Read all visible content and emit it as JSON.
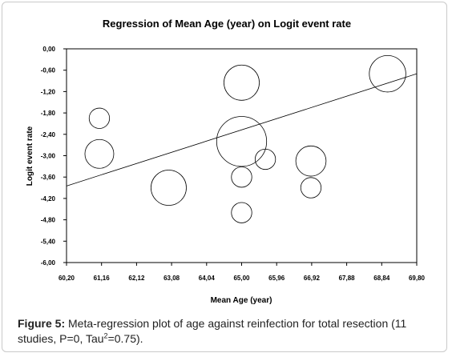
{
  "chart_data": {
    "type": "scatter",
    "title": "Regression of Mean Age (year) on Logit event rate",
    "xlabel": "Mean Age (year)",
    "ylabel": "Logit event rate",
    "xlim": [
      60.2,
      69.8
    ],
    "ylim": [
      -6.0,
      0.0
    ],
    "x_ticks": [
      "60,20",
      "61,16",
      "62,12",
      "63,08",
      "64,04",
      "65,00",
      "65,96",
      "66,92",
      "67,88",
      "68,84",
      "69,80"
    ],
    "y_ticks": [
      "0,00",
      "-0,60",
      "-1,20",
      "-1,80",
      "-2,40",
      "-3,00",
      "-3,60",
      "-4,20",
      "-4,80",
      "-5,40",
      "-6,00"
    ],
    "points": [
      {
        "x": 61.1,
        "y": -1.95,
        "size": 0.5
      },
      {
        "x": 61.1,
        "y": -2.95,
        "size": 1.0
      },
      {
        "x": 63.0,
        "y": -3.9,
        "size": 1.5
      },
      {
        "x": 65.0,
        "y": -0.95,
        "size": 1.5
      },
      {
        "x": 65.0,
        "y": -2.6,
        "size": 3.0
      },
      {
        "x": 65.0,
        "y": -3.6,
        "size": 0.5
      },
      {
        "x": 65.0,
        "y": -4.6,
        "size": 0.5
      },
      {
        "x": 65.65,
        "y": -3.1,
        "size": 0.5
      },
      {
        "x": 66.9,
        "y": -3.15,
        "size": 1.1
      },
      {
        "x": 66.9,
        "y": -3.9,
        "size": 0.5
      },
      {
        "x": 69.0,
        "y": -0.7,
        "size": 1.6
      }
    ],
    "regression_line": {
      "x": [
        60.2,
        69.8
      ],
      "y": [
        -3.85,
        -0.7
      ]
    },
    "grid": false,
    "legend": "none"
  },
  "caption": {
    "label": "Figure 5:",
    "text": "Meta-regression plot of age against reinfection for total resection (11 studies, P=0, Tau",
    "sup": "2",
    "tail": "=0.75)."
  }
}
